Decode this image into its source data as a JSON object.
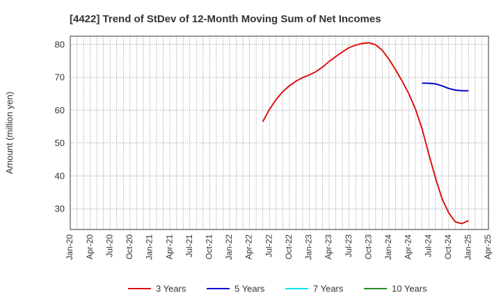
{
  "chart_data": {
    "type": "line",
    "title": "[4422]  Trend of StDev of 12-Month Moving Sum of Net Incomes",
    "ylabel": "Amount (million yen)",
    "xlabel": "",
    "x_ticks": [
      "Jan-20",
      "Apr-20",
      "Jul-20",
      "Oct-20",
      "Jan-21",
      "Apr-21",
      "Jul-21",
      "Oct-21",
      "Jan-22",
      "Apr-22",
      "Jul-22",
      "Oct-22",
      "Jan-23",
      "Apr-23",
      "Jul-23",
      "Oct-23",
      "Jan-24",
      "Apr-24",
      "Jul-24",
      "Oct-24",
      "Jan-25",
      "Apr-25"
    ],
    "y_ticks": [
      30,
      40,
      50,
      60,
      70,
      80
    ],
    "ylim": [
      23.7,
      82.5
    ],
    "grid": true,
    "legend_position": "bottom",
    "series": [
      {
        "name": "3 Years",
        "color": "#dd1111",
        "x": [
          "2022-06",
          "2022-07",
          "2022-08",
          "2022-09",
          "2022-10",
          "2022-11",
          "2022-12",
          "2023-01",
          "2023-02",
          "2023-03",
          "2023-04",
          "2023-05",
          "2023-06",
          "2023-07",
          "2023-08",
          "2023-09",
          "2023-10",
          "2023-11",
          "2023-12",
          "2024-01",
          "2024-02",
          "2024-03",
          "2024-04",
          "2024-05",
          "2024-06",
          "2024-07",
          "2024-08",
          "2024-09",
          "2024-10",
          "2024-11",
          "2024-12",
          "2025-01"
        ],
        "values": [
          56.5,
          60.2,
          63.2,
          65.6,
          67.4,
          68.8,
          69.9,
          70.7,
          71.7,
          73.1,
          74.8,
          76.3,
          77.7,
          79.0,
          79.8,
          80.3,
          80.5,
          79.9,
          78.2,
          75.5,
          72.3,
          68.8,
          65.0,
          60.3,
          54.3,
          46.7,
          39.5,
          33.1,
          28.8,
          26.0,
          25.5,
          26.4
        ]
      },
      {
        "name": "5 Years",
        "color": "#0000cc",
        "x": [
          "2024-06",
          "2024-07",
          "2024-08",
          "2024-09",
          "2024-10",
          "2024-11",
          "2024-12",
          "2025-01"
        ],
        "values": [
          68.2,
          68.2,
          68.0,
          67.4,
          66.6,
          66.1,
          65.9,
          65.9
        ]
      },
      {
        "name": "7 Years",
        "color": "#00e5ee",
        "x": [],
        "values": []
      },
      {
        "name": "10 Years",
        "color": "#228b22",
        "x": [],
        "values": []
      }
    ]
  }
}
